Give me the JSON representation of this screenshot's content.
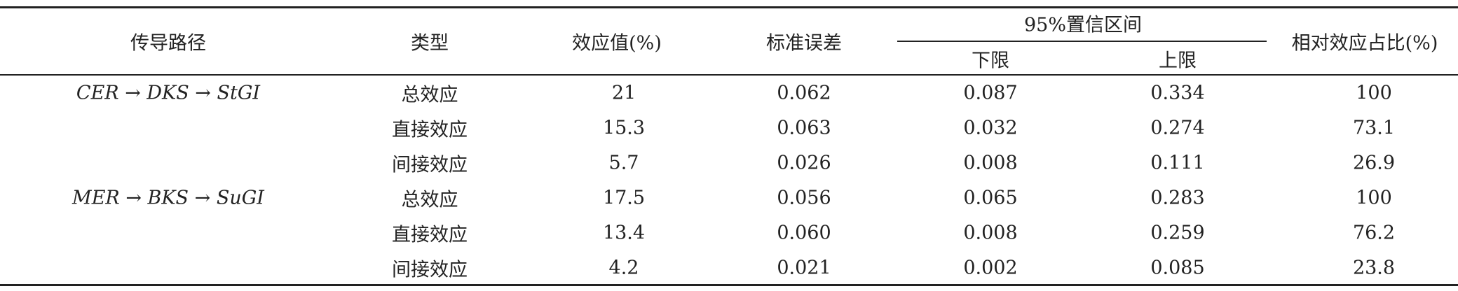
{
  "table": {
    "headers": {
      "path": "传导路径",
      "type": "类型",
      "effect": "效应值(%)",
      "se": "标准误差",
      "ci": "95%置信区间",
      "lower": "下限",
      "upper": "上限",
      "ratio": "相对效应占比(%)"
    },
    "groups": [
      {
        "path": "CER → DKS → StGI",
        "rows": [
          [
            "总效应",
            "21",
            "0.062",
            "0.087",
            "0.334",
            "100"
          ],
          [
            "直接效应",
            "15.3",
            "0.063",
            "0.032",
            "0.274",
            "73.1"
          ],
          [
            "间接效应",
            "5.7",
            "0.026",
            "0.008",
            "0.111",
            "26.9"
          ]
        ]
      },
      {
        "path": "MER → BKS → SuGI",
        "rows": [
          [
            "总效应",
            "17.5",
            "0.056",
            "0.065",
            "0.283",
            "100"
          ],
          [
            "直接效应",
            "13.4",
            "0.060",
            "0.008",
            "0.259",
            "76.2"
          ],
          [
            "间接效应",
            "4.2",
            "0.021",
            "0.002",
            "0.085",
            "23.8"
          ]
        ]
      }
    ]
  }
}
